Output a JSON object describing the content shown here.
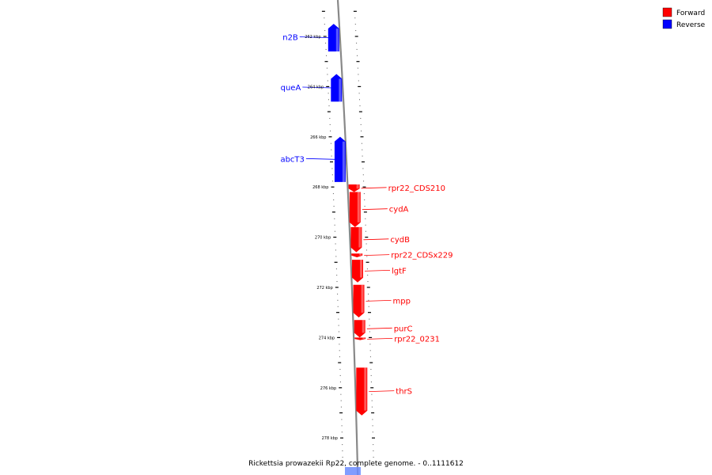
{
  "legend": [
    {
      "label": "Forward",
      "color": "#ff0000"
    },
    {
      "label": "Reverse",
      "color": "#0000ff"
    }
  ],
  "caption": "Rickettsia prowazekii Rp22, complete genome. - 0..1111612",
  "axis": {
    "unit": "kbp",
    "tick_labels": [
      {
        "kbp": 262,
        "label": "262 kbp"
      },
      {
        "kbp": 264,
        "label": "264 kbp"
      },
      {
        "kbp": 266,
        "label": "266 kbp"
      },
      {
        "kbp": 268,
        "label": "268 kbp"
      },
      {
        "kbp": 270,
        "label": "270 kbp"
      },
      {
        "kbp": 272,
        "label": "272 kbp"
      },
      {
        "kbp": 274,
        "label": "274 kbp"
      },
      {
        "kbp": 276,
        "label": "276 kbp"
      },
      {
        "kbp": 278,
        "label": "278 kbp"
      }
    ]
  },
  "genes": [
    {
      "name": "n2B",
      "strand": "reverse",
      "start_kbp": 261.5,
      "end_kbp": 262.6
    },
    {
      "name": "queA",
      "strand": "reverse",
      "start_kbp": 263.5,
      "end_kbp": 264.6
    },
    {
      "name": "abcT3",
      "strand": "reverse",
      "start_kbp": 266.0,
      "end_kbp": 267.8
    },
    {
      "name": "rpr22_CDS210",
      "strand": "forward",
      "start_kbp": 267.9,
      "end_kbp": 268.2
    },
    {
      "name": "cydA",
      "strand": "forward",
      "start_kbp": 268.2,
      "end_kbp": 269.6
    },
    {
      "name": "cydB",
      "strand": "forward",
      "start_kbp": 269.6,
      "end_kbp": 270.6
    },
    {
      "name": "rpr22_CDSx229",
      "strand": "forward",
      "start_kbp": 270.65,
      "end_kbp": 270.8
    },
    {
      "name": "lgtF",
      "strand": "forward",
      "start_kbp": 270.9,
      "end_kbp": 271.8
    },
    {
      "name": "mpp",
      "strand": "forward",
      "start_kbp": 271.9,
      "end_kbp": 273.2
    },
    {
      "name": "purC",
      "strand": "forward",
      "start_kbp": 273.3,
      "end_kbp": 274.0
    },
    {
      "name": "rpr22_0231",
      "strand": "forward",
      "start_kbp": 274.0,
      "end_kbp": 274.1
    },
    {
      "name": "thrS",
      "strand": "forward",
      "start_kbp": 275.2,
      "end_kbp": 277.1
    }
  ]
}
